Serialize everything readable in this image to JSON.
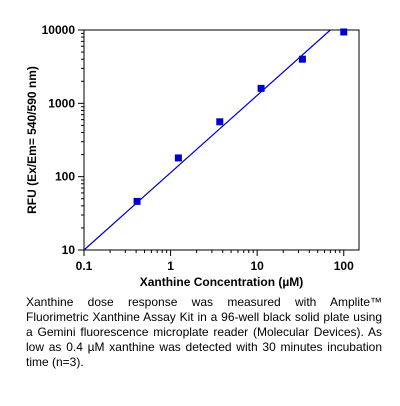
{
  "chart_data": {
    "type": "scatter",
    "xlabel": "Xanthine Concentration (µM)",
    "ylabel": "RFU (Ex/Em= 540/590 nm)",
    "x_scale": "log",
    "y_scale": "log",
    "xlim": [
      0.1,
      150
    ],
    "ylim": [
      10,
      10000
    ],
    "x_ticks": [
      "0.1",
      "1",
      "10",
      "100"
    ],
    "y_ticks": [
      "10",
      "100",
      "1000",
      "10000"
    ],
    "grid": false,
    "legend": "none",
    "marker_color": "#0000cc",
    "line_color": "#0000cc",
    "points": [
      {
        "x": 0.41,
        "y": 46
      },
      {
        "x": 1.23,
        "y": 180
      },
      {
        "x": 3.7,
        "y": 560
      },
      {
        "x": 11.1,
        "y": 1600
      },
      {
        "x": 33.3,
        "y": 4000
      },
      {
        "x": 100,
        "y": 9400
      }
    ],
    "fit_line": [
      {
        "x": 0.1,
        "y": 10
      },
      {
        "x": 70,
        "y": 10000
      }
    ]
  },
  "caption": "Xanthine dose response was measured with Amplite™ Fluorimetric Xanthine Assay Kit in a 96-well black solid plate using a Gemini fluorescence microplate reader (Molecular Devices). As low as 0.4 µM xanthine was detected with 30 minutes incubation time (n=3)."
}
